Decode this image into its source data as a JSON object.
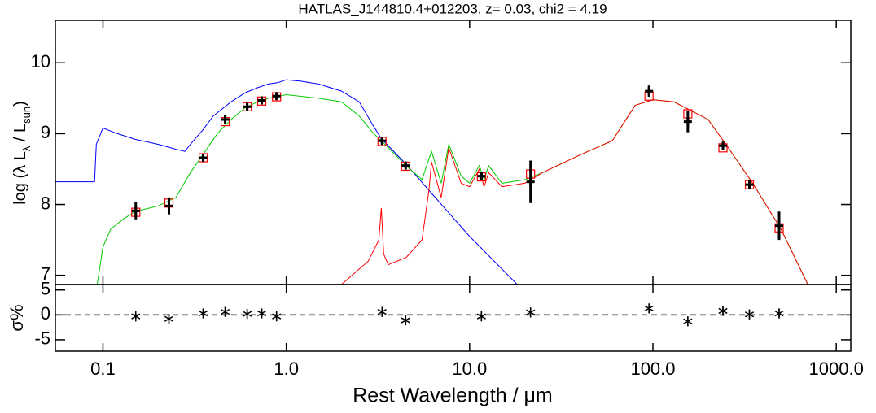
{
  "chart_data": [
    {
      "type": "line",
      "title": "HATLAS_J144810.4+012203, z= 0.03, chi2 = 4.19",
      "ylabel_parts": [
        "log (λ L",
        "λ",
        " / L",
        "sun",
        ")"
      ],
      "xlog": true,
      "xlim": [
        0.055,
        1200
      ],
      "ylim": [
        6.87,
        10.6
      ],
      "yticks": [
        7,
        8,
        9,
        10
      ],
      "series": [
        {
          "color": "#0000ff",
          "x": [
            0.055,
            0.09,
            0.092,
            0.1,
            0.12,
            0.15,
            0.2,
            0.25,
            0.28,
            0.3,
            0.35,
            0.4,
            0.5,
            0.6,
            0.7,
            0.8,
            0.9,
            1.0,
            1.2,
            1.5,
            2.0,
            2.5,
            3.0,
            3.3,
            4.5,
            6,
            10,
            18.2
          ],
          "values": [
            8.32,
            8.32,
            8.85,
            9.08,
            9.0,
            8.92,
            8.85,
            8.78,
            8.75,
            8.85,
            9.05,
            9.25,
            9.45,
            9.58,
            9.65,
            9.7,
            9.72,
            9.76,
            9.74,
            9.7,
            9.6,
            9.45,
            9.1,
            8.93,
            8.57,
            8.2,
            7.55,
            6.87
          ]
        },
        {
          "color": "#00cc00",
          "x": [
            0.093,
            0.1,
            0.11,
            0.13,
            0.15,
            0.2,
            0.25,
            0.3,
            0.35,
            0.42,
            0.5,
            0.6,
            0.7,
            0.8,
            1.0,
            1.5,
            2.0,
            2.5,
            3.0,
            3.3,
            4.5,
            5.5,
            6.2,
            7.0,
            7.7,
            9,
            10,
            11.3,
            12,
            12.7,
            15,
            20,
            25,
            40,
            60,
            80,
            100,
            130,
            200,
            250,
            350,
            500,
            700
          ],
          "values": [
            6.87,
            7.4,
            7.65,
            7.8,
            7.9,
            7.98,
            8.1,
            8.45,
            8.7,
            9.0,
            9.2,
            9.37,
            9.45,
            9.5,
            9.55,
            9.5,
            9.45,
            9.25,
            9.0,
            8.9,
            8.55,
            8.35,
            8.75,
            8.3,
            8.85,
            8.4,
            8.3,
            8.55,
            8.35,
            8.55,
            8.3,
            8.35,
            8.45,
            8.7,
            8.9,
            9.4,
            9.48,
            9.45,
            9.2,
            8.85,
            8.3,
            7.65,
            6.87
          ]
        },
        {
          "color": "#ff0000",
          "x": [
            2.0,
            2.8,
            3.2,
            3.3,
            3.4,
            3.6,
            4.5,
            5.5,
            6.0,
            6.2,
            7.0,
            7.7,
            9,
            10,
            11.3,
            12,
            12.7,
            15,
            20,
            25,
            40,
            60,
            80,
            100,
            130,
            200,
            250,
            350,
            500,
            700
          ],
          "values": [
            6.87,
            7.2,
            7.5,
            7.95,
            7.3,
            7.15,
            7.25,
            7.5,
            8.2,
            8.6,
            8.1,
            8.8,
            8.3,
            8.25,
            8.5,
            8.25,
            8.45,
            8.25,
            8.3,
            8.45,
            8.7,
            8.9,
            9.4,
            9.48,
            9.45,
            9.2,
            8.85,
            8.3,
            7.65,
            6.87
          ]
        }
      ],
      "points": {
        "color": "#000000",
        "x": [
          0.151,
          0.229,
          0.352,
          0.464,
          0.612,
          0.735,
          0.885,
          3.33,
          4.48,
          11.6,
          21.5,
          95.2,
          155,
          241,
          336,
          488
        ],
        "values": [
          7.91,
          7.98,
          8.66,
          9.2,
          9.38,
          9.47,
          9.53,
          8.9,
          8.55,
          8.4,
          8.32,
          9.6,
          9.17,
          8.83,
          8.28,
          7.7
        ],
        "errors": [
          0.12,
          0.12,
          0.05,
          0.05,
          0.04,
          0.04,
          0.05,
          0.04,
          0.04,
          0.05,
          0.3,
          0.08,
          0.15,
          0.05,
          0.06,
          0.2
        ]
      },
      "model_points": {
        "color": "#ff0000",
        "values": [
          7.89,
          8.02,
          8.66,
          9.17,
          9.38,
          9.46,
          9.52,
          8.89,
          8.54,
          8.39,
          8.43,
          9.53,
          9.28,
          8.8,
          8.28,
          7.67
        ]
      }
    },
    {
      "type": "scatter",
      "xlabel": "Rest Wavelength / μm",
      "ylabel": "σ%",
      "xlog": true,
      "xlim": [
        0.055,
        1200
      ],
      "ylim": [
        -7.3,
        6.1
      ],
      "yticks": [
        -5,
        0,
        5
      ],
      "xticks": [
        0.1,
        {
          "value": 1,
          "label": "1.0"
        },
        {
          "value": 10,
          "label": "10.0"
        },
        {
          "value": 100,
          "label": "100.0"
        },
        {
          "value": 1000,
          "label": "1000.0"
        }
      ],
      "hline": 0,
      "color": "#000000",
      "x": [
        0.151,
        0.229,
        0.352,
        0.464,
        0.612,
        0.735,
        0.885,
        3.33,
        4.48,
        11.6,
        21.5,
        95.2,
        155,
        241,
        336,
        488
      ],
      "values": [
        -0.3,
        -0.8,
        0.3,
        0.6,
        0.2,
        0.3,
        -0.3,
        0.6,
        -1.1,
        -0.3,
        0.5,
        1.3,
        -1.3,
        0.8,
        0.1,
        0.3
      ],
      "errors": [
        1,
        1,
        1,
        1,
        1,
        1,
        1,
        1,
        1,
        1,
        1,
        1,
        1,
        1,
        1,
        1
      ]
    }
  ]
}
